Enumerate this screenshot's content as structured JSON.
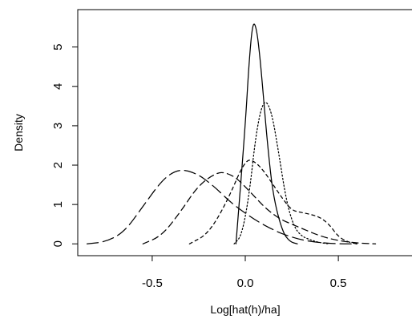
{
  "chart_data": {
    "type": "line",
    "title": "",
    "xlabel": "Log[hat(h)/ha]",
    "ylabel": "Density",
    "xlim": [
      -0.9,
      0.9
    ],
    "ylim": [
      -0.3,
      5.95
    ],
    "x_ticks": [
      -0.5,
      0.0,
      0.5
    ],
    "x_tick_labels": [
      "-0.5",
      "0.0",
      "0.5"
    ],
    "y_ticks": [
      0,
      1,
      2,
      3,
      4,
      5
    ],
    "y_tick_labels": [
      "0",
      "1",
      "2",
      "3",
      "4",
      "5"
    ],
    "grid": false,
    "legend": "none",
    "line_color": "#000000",
    "series": [
      {
        "line_style": "solid",
        "x": [
          -0.05,
          0.0,
          0.02,
          0.04,
          0.06,
          0.08,
          0.1,
          0.12,
          0.15,
          0.2,
          0.24,
          0.28
        ],
        "y": [
          0.0,
          3.0,
          4.6,
          5.65,
          5.5,
          4.7,
          3.6,
          2.5,
          1.2,
          0.3,
          0.05,
          0.0
        ]
      },
      {
        "line_style": "dotted",
        "x": [
          -0.06,
          -0.02,
          0.02,
          0.06,
          0.1,
          0.14,
          0.18,
          0.22,
          0.26,
          0.3,
          0.35,
          0.4,
          0.45
        ],
        "y": [
          0.0,
          0.2,
          1.2,
          2.9,
          3.7,
          3.4,
          2.3,
          1.1,
          0.45,
          0.2,
          0.1,
          0.03,
          0.0
        ]
      },
      {
        "line_style": "short-dash",
        "x": [
          -0.3,
          -0.2,
          -0.1,
          0.0,
          0.05,
          0.1,
          0.15,
          0.2,
          0.25,
          0.3,
          0.35,
          0.4,
          0.45,
          0.5,
          0.55,
          0.6
        ],
        "y": [
          0.0,
          0.25,
          1.05,
          2.15,
          2.1,
          1.85,
          1.5,
          1.15,
          0.85,
          0.8,
          0.75,
          0.68,
          0.5,
          0.18,
          0.05,
          0.0
        ]
      },
      {
        "line_style": "medium-dash",
        "x": [
          -0.55,
          -0.45,
          -0.35,
          -0.25,
          -0.15,
          -0.1,
          -0.05,
          0.0,
          0.05,
          0.1,
          0.15,
          0.2,
          0.25,
          0.3,
          0.4,
          0.5,
          0.6,
          0.7
        ],
        "y": [
          0.0,
          0.2,
          0.8,
          1.5,
          1.82,
          1.8,
          1.68,
          1.45,
          1.2,
          0.95,
          0.75,
          0.6,
          0.5,
          0.4,
          0.2,
          0.08,
          0.02,
          0.0
        ]
      },
      {
        "line_style": "long-dash",
        "x": [
          -0.85,
          -0.75,
          -0.65,
          -0.55,
          -0.45,
          -0.38,
          -0.32,
          -0.25,
          -0.2,
          -0.15,
          -0.1,
          -0.05,
          0.0,
          0.05,
          0.1,
          0.15,
          0.2,
          0.3,
          0.4,
          0.5,
          0.6
        ],
        "y": [
          0.0,
          0.05,
          0.3,
          0.95,
          1.6,
          1.85,
          1.88,
          1.75,
          1.58,
          1.38,
          1.15,
          0.95,
          0.78,
          0.62,
          0.48,
          0.36,
          0.25,
          0.1,
          0.03,
          0.0,
          0.0
        ]
      }
    ]
  }
}
